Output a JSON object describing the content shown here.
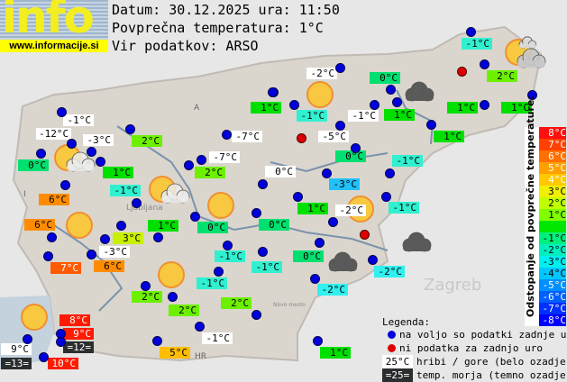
{
  "logo": {
    "word": "info",
    "url": "www.informacije.si"
  },
  "header": {
    "date_line": "Datum: 30.12.2025 ura: 11:50",
    "avg_line": "Povprečna temperatura: 1°C",
    "source_line": "Vir podatkov: ARSO"
  },
  "map_labels": [
    "A",
    "I",
    "HR",
    "Ljubljana",
    "Zagreb",
    "Novo mesto"
  ],
  "colors": {
    "t10": "#ff1a00",
    "t9": "#ff1a00",
    "t8": "#ff1a00",
    "t7": "#ff5a00",
    "t6": "#ff8c00",
    "t5": "#ffbe00",
    "t3": "#c8f000",
    "t2": "#6cf000",
    "t1": "#00e000",
    "t0": "#00e070",
    "tm1": "#30f0d0",
    "tm2": "#30f0f0",
    "tm3": "#20c0f8",
    "white": "#ffffff",
    "sea": "#2a2e2e",
    "dot_ok": "#0000dd",
    "dot_missing": "#dd0000"
  },
  "stations": [
    {
      "t": "-1°C",
      "c": "tm1"
    },
    {
      "t": "-2°C",
      "c": "white"
    },
    {
      "t": "0°C",
      "c": "t0"
    },
    {
      "t": "2°C",
      "c": "t2"
    },
    {
      "t": "1°C",
      "c": "t1"
    },
    {
      "t": "-1°C",
      "c": "tm1"
    },
    {
      "t": "-1°C",
      "c": "white"
    },
    {
      "t": "1°C",
      "c": "t1"
    },
    {
      "t": "1°C",
      "c": "t1"
    },
    {
      "t": "1°C",
      "c": "t1"
    },
    {
      "t": "-1°C",
      "c": "white"
    },
    {
      "t": "-12°C",
      "c": "white"
    },
    {
      "t": "-3°C",
      "c": "white"
    },
    {
      "t": "2°C",
      "c": "t2"
    },
    {
      "t": "-7°C",
      "c": "white"
    },
    {
      "t": "-5°C",
      "c": "white"
    },
    {
      "t": "1°C",
      "c": "t1"
    },
    {
      "t": "0°C",
      "c": "t0"
    },
    {
      "t": "1°C",
      "c": "t1"
    },
    {
      "t": "-7°C",
      "c": "white"
    },
    {
      "t": "2°C",
      "c": "t2"
    },
    {
      "t": "0°C",
      "c": "t0"
    },
    {
      "t": "-1°C",
      "c": "tm1"
    },
    {
      "t": "0°C",
      "c": "white"
    },
    {
      "t": "-1°C",
      "c": "tm1"
    },
    {
      "t": "-3°C",
      "c": "tm3"
    },
    {
      "t": "6°C",
      "c": "t6"
    },
    {
      "t": "1°C",
      "c": "t1"
    },
    {
      "t": "-2°C",
      "c": "white"
    },
    {
      "t": "-1°C",
      "c": "tm1"
    },
    {
      "t": "6°C",
      "c": "t6"
    },
    {
      "t": "1°C",
      "c": "t1"
    },
    {
      "t": "0°C",
      "c": "t0"
    },
    {
      "t": "0°C",
      "c": "t0"
    },
    {
      "t": "3°C",
      "c": "t3"
    },
    {
      "t": "-3°C",
      "c": "white"
    },
    {
      "t": "7°C",
      "c": "t7"
    },
    {
      "t": "6°C",
      "c": "t6"
    },
    {
      "t": "-1°C",
      "c": "tm1"
    },
    {
      "t": "-1°C",
      "c": "tm1"
    },
    {
      "t": "0°C",
      "c": "t0"
    },
    {
      "t": "-2°C",
      "c": "tm2"
    },
    {
      "t": "-1°C",
      "c": "tm1"
    },
    {
      "t": "-2°C",
      "c": "tm2"
    },
    {
      "t": "2°C",
      "c": "t2"
    },
    {
      "t": "2°C",
      "c": "t2"
    },
    {
      "t": "2°C",
      "c": "t2"
    },
    {
      "t": "8°C",
      "c": "t8"
    },
    {
      "t": "9°C",
      "c": "t9"
    },
    {
      "t": "=12=",
      "c": "sea"
    },
    {
      "t": "9°C",
      "c": "white"
    },
    {
      "t": "=13=",
      "c": "sea"
    },
    {
      "t": "10°C",
      "c": "t10"
    },
    {
      "t": "-1°C",
      "c": "white"
    },
    {
      "t": "5°C",
      "c": "t5"
    },
    {
      "t": "1°C",
      "c": "t1"
    }
  ],
  "station_dots_missing_count": 3,
  "weather_icons": [
    "sun",
    "sun-cloud",
    "sun-cloud",
    "sun",
    "sun",
    "sun",
    "sun",
    "sun",
    "dark-cloud",
    "dark-cloud",
    "dark-cloud",
    "sun-clouds"
  ],
  "scale": {
    "title": "Odstopanje od povprečne temperature:",
    "rows": [
      {
        "t": "8°C",
        "color": "#ff1010"
      },
      {
        "t": "7°C",
        "color": "#ff4000"
      },
      {
        "t": "6°C",
        "color": "#ff7000"
      },
      {
        "t": "5°C",
        "color": "#ffa000"
      },
      {
        "t": "4°C",
        "color": "#ffc800"
      },
      {
        "t": "3°C",
        "color": "#f0f000"
      },
      {
        "t": "2°C",
        "color": "#c0ff00"
      },
      {
        "t": "1°C",
        "color": "#80ff00"
      },
      {
        "t": "",
        "color": "#00e800"
      },
      {
        "t": "-1°C",
        "color": "#00f080"
      },
      {
        "t": "-2°C",
        "color": "#00f0c0"
      },
      {
        "t": "-3°C",
        "color": "#00f0f0"
      },
      {
        "t": "-4°C",
        "color": "#00c8ff"
      },
      {
        "t": "-5°C",
        "color": "#0090ff"
      },
      {
        "t": "-6°C",
        "color": "#0060ff"
      },
      {
        "t": "-7°C",
        "color": "#0030ff"
      },
      {
        "t": "-8°C",
        "color": "#0000ff"
      }
    ]
  },
  "legend": {
    "title": "Legenda:",
    "blue_dot": "na voljo so podatki zadnje ure",
    "red_dot": "ni podatka za zadnjo uro",
    "white_sample": "25°C",
    "white_text": "hribi / gore (belo ozadje)",
    "dark_sample": "=25=",
    "dark_text": "temp. morja (temno ozadje)"
  }
}
